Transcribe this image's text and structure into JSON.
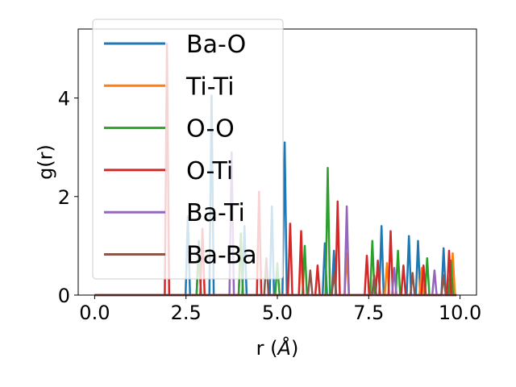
{
  "chart_data": {
    "type": "line",
    "xlabel_main": "r (",
    "xlabel_unit": "Å",
    "xlabel_close": ")",
    "ylabel": "g(r)",
    "xlim": [
      -0.45,
      10.45
    ],
    "ylim": [
      0,
      5.4
    ],
    "xticks": [
      0.0,
      2.5,
      5.0,
      7.5,
      10.0
    ],
    "xtick_labels": [
      "0.0",
      "2.5",
      "5.0",
      "7.5",
      "10.0"
    ],
    "yticks": [
      0,
      2,
      4
    ],
    "ytick_labels": [
      "0",
      "2",
      "4"
    ],
    "grid": false,
    "legend_position": "top-left",
    "series": [
      {
        "name": "Ba-O",
        "color": "#1f77b4",
        "peaks": [
          [
            2.55,
            1.6
          ],
          [
            2.85,
            1.1
          ],
          [
            3.2,
            4.05
          ],
          [
            4.1,
            1.4
          ],
          [
            4.85,
            1.8
          ],
          [
            5.2,
            3.1
          ],
          [
            6.3,
            1.05
          ],
          [
            6.55,
            0.9
          ],
          [
            7.85,
            1.4
          ],
          [
            8.6,
            1.2
          ],
          [
            8.85,
            1.1
          ],
          [
            9.55,
            0.95
          ]
        ]
      },
      {
        "name": "Ti-Ti",
        "color": "#ff7f0e",
        "peaks": [
          [
            4.0,
            1.0
          ],
          [
            5.65,
            0.9
          ],
          [
            6.9,
            0.85
          ],
          [
            8.0,
            0.65
          ],
          [
            8.95,
            0.55
          ],
          [
            9.8,
            0.85
          ]
        ]
      },
      {
        "name": "O-O",
        "color": "#2ca02c",
        "peaks": [
          [
            2.85,
            0.9
          ],
          [
            4.0,
            1.25
          ],
          [
            5.0,
            0.65
          ],
          [
            5.75,
            1.0
          ],
          [
            6.38,
            2.58
          ],
          [
            7.6,
            1.1
          ],
          [
            8.3,
            0.9
          ],
          [
            9.1,
            0.75
          ],
          [
            9.75,
            0.7
          ]
        ]
      },
      {
        "name": "O-Ti",
        "color": "#d62728",
        "peaks": [
          [
            1.98,
            5.1
          ],
          [
            2.95,
            1.35
          ],
          [
            4.5,
            2.1
          ],
          [
            5.35,
            1.45
          ],
          [
            5.65,
            1.3
          ],
          [
            6.1,
            0.6
          ],
          [
            6.65,
            1.9
          ],
          [
            7.45,
            0.8
          ],
          [
            7.75,
            0.7
          ],
          [
            8.1,
            1.3
          ],
          [
            8.45,
            0.6
          ],
          [
            9.0,
            0.6
          ],
          [
            9.7,
            0.9
          ]
        ]
      },
      {
        "name": "Ba-Ti",
        "color": "#9467bd",
        "peaks": [
          [
            3.75,
            2.9
          ],
          [
            6.9,
            1.8
          ],
          [
            8.2,
            0.55
          ],
          [
            9.3,
            0.5
          ]
        ]
      },
      {
        "name": "Ba-Ba",
        "color": "#8c564b",
        "peaks": [
          [
            4.7,
            0.75
          ],
          [
            5.9,
            0.5
          ],
          [
            6.55,
            0.45
          ],
          [
            7.65,
            0.4
          ],
          [
            8.7,
            0.45
          ],
          [
            9.55,
            0.4
          ]
        ]
      }
    ]
  }
}
